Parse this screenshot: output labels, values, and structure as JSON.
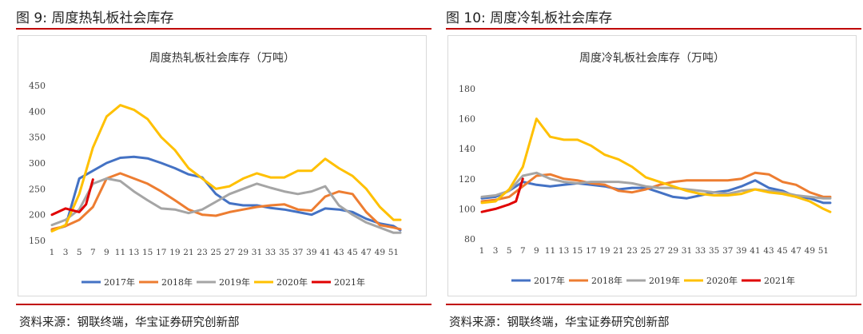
{
  "charts": {
    "left": {
      "figure_label": "图 9:  周度热轧板社会库存",
      "source": "资料来源：钢联终端，华宝证券研究创新部"
    },
    "right": {
      "figure_label": "图 10:  周度冷轧板社会库存",
      "source": "资料来源：钢联终端，华宝证券研究创新部"
    }
  },
  "chart_data": [
    {
      "type": "line",
      "title": "周度热轧板社会库存（万吨）",
      "xlabel": "",
      "ylabel": "",
      "ylim": [
        150,
        450
      ],
      "yticks": [
        150,
        200,
        250,
        300,
        350,
        400,
        450
      ],
      "xtick_labels": [
        "1",
        "3",
        "5",
        "7",
        "9",
        "11",
        "13",
        "15",
        "17",
        "19",
        "21",
        "23",
        "25",
        "27",
        "29",
        "31",
        "33",
        "35",
        "37",
        "39",
        "41",
        "43",
        "45",
        "47",
        "49",
        "51"
      ],
      "grid": false,
      "legend_position": "bottom",
      "series": [
        {
          "name": "2017年",
          "color": "#4472c4",
          "x": [
            1,
            3,
            5,
            7,
            9,
            11,
            13,
            15,
            17,
            19,
            21,
            23,
            25,
            27,
            29,
            31,
            33,
            35,
            37,
            39,
            41,
            43,
            45,
            47,
            49,
            51,
            52
          ],
          "y": [
            170,
            178,
            270,
            285,
            300,
            310,
            312,
            309,
            300,
            290,
            278,
            272,
            240,
            222,
            218,
            218,
            213,
            210,
            205,
            200,
            212,
            210,
            205,
            192,
            183,
            178,
            170
          ]
        },
        {
          "name": "2018年",
          "color": "#ed7d31",
          "x": [
            1,
            3,
            5,
            7,
            9,
            11,
            13,
            15,
            17,
            19,
            21,
            23,
            25,
            27,
            29,
            31,
            33,
            35,
            37,
            39,
            41,
            43,
            45,
            47,
            49,
            51,
            52
          ],
          "y": [
            172,
            178,
            190,
            215,
            270,
            280,
            270,
            260,
            245,
            228,
            210,
            200,
            198,
            205,
            210,
            215,
            218,
            220,
            210,
            208,
            235,
            245,
            240,
            205,
            180,
            175,
            172
          ]
        },
        {
          "name": "2019年",
          "color": "#a5a5a5",
          "x": [
            1,
            3,
            5,
            7,
            9,
            11,
            13,
            15,
            17,
            19,
            21,
            23,
            25,
            27,
            29,
            31,
            33,
            35,
            37,
            39,
            41,
            43,
            45,
            47,
            49,
            51,
            52
          ],
          "y": [
            180,
            190,
            210,
            260,
            270,
            265,
            245,
            228,
            212,
            210,
            203,
            210,
            225,
            240,
            250,
            260,
            252,
            245,
            240,
            245,
            255,
            218,
            200,
            185,
            175,
            165,
            165
          ]
        },
        {
          "name": "2020年",
          "color": "#ffc000",
          "x": [
            1,
            3,
            5,
            7,
            9,
            11,
            13,
            15,
            17,
            19,
            21,
            23,
            25,
            27,
            29,
            31,
            33,
            35,
            37,
            39,
            41,
            43,
            45,
            47,
            49,
            51,
            52
          ],
          "y": [
            168,
            180,
            240,
            330,
            390,
            412,
            403,
            385,
            350,
            325,
            290,
            270,
            250,
            255,
            270,
            280,
            272,
            272,
            285,
            285,
            308,
            290,
            275,
            250,
            215,
            190,
            190
          ]
        },
        {
          "name": "2021年",
          "color": "#e00000",
          "x": [
            1,
            3,
            5,
            6,
            7
          ],
          "y": [
            200,
            212,
            205,
            220,
            268
          ]
        }
      ]
    },
    {
      "type": "line",
      "title": "周度冷轧板社会库存（万吨）",
      "xlabel": "",
      "ylabel": "",
      "ylim": [
        80,
        180
      ],
      "yticks": [
        80,
        100,
        120,
        140,
        160,
        180
      ],
      "xtick_labels": [
        "1",
        "3",
        "5",
        "7",
        "9",
        "11",
        "13",
        "15",
        "17",
        "19",
        "21",
        "23",
        "25",
        "27",
        "29",
        "31",
        "33",
        "35",
        "37",
        "39",
        "41",
        "43",
        "45",
        "47",
        "49",
        "51"
      ],
      "grid": false,
      "legend_position": "bottom",
      "series": [
        {
          "name": "2017年",
          "color": "#4472c4",
          "x": [
            1,
            3,
            5,
            7,
            9,
            11,
            13,
            15,
            17,
            19,
            21,
            23,
            25,
            27,
            29,
            31,
            33,
            35,
            37,
            39,
            41,
            43,
            45,
            47,
            49,
            51,
            52
          ],
          "y": [
            107,
            108,
            112,
            118,
            116,
            115,
            116,
            117,
            116,
            115,
            113,
            114,
            114,
            111,
            108,
            107,
            109,
            111,
            112,
            115,
            119,
            114,
            112,
            108,
            107,
            104,
            104
          ]
        },
        {
          "name": "2018年",
          "color": "#ed7d31",
          "x": [
            1,
            3,
            5,
            7,
            9,
            11,
            13,
            15,
            17,
            19,
            21,
            23,
            25,
            27,
            29,
            31,
            33,
            35,
            37,
            39,
            41,
            43,
            45,
            47,
            49,
            51,
            52
          ],
          "y": [
            105,
            106,
            108,
            115,
            122,
            123,
            120,
            119,
            117,
            116,
            112,
            111,
            113,
            116,
            118,
            119,
            119,
            119,
            119,
            120,
            124,
            123,
            118,
            116,
            111,
            108,
            108
          ]
        },
        {
          "name": "2019年",
          "color": "#a5a5a5",
          "x": [
            1,
            3,
            5,
            7,
            9,
            11,
            13,
            15,
            17,
            19,
            21,
            23,
            25,
            27,
            29,
            31,
            33,
            35,
            37,
            39,
            41,
            43,
            45,
            47,
            49,
            51,
            52
          ],
          "y": [
            108,
            109,
            112,
            122,
            124,
            120,
            118,
            117,
            118,
            118,
            118,
            117,
            115,
            114,
            114,
            113,
            112,
            111,
            110,
            112,
            113,
            112,
            111,
            109,
            108,
            107,
            107
          ]
        },
        {
          "name": "2020年",
          "color": "#ffc000",
          "x": [
            1,
            3,
            5,
            7,
            9,
            11,
            13,
            15,
            17,
            19,
            21,
            23,
            25,
            27,
            29,
            31,
            33,
            35,
            37,
            39,
            41,
            43,
            45,
            47,
            49,
            51,
            52
          ],
          "y": [
            104,
            105,
            113,
            128,
            160,
            148,
            146,
            146,
            142,
            136,
            133,
            128,
            121,
            118,
            115,
            112,
            110,
            109,
            109,
            110,
            113,
            111,
            110,
            108,
            105,
            100,
            98
          ]
        },
        {
          "name": "2021年",
          "color": "#e00000",
          "x": [
            1,
            3,
            5,
            6,
            7
          ],
          "y": [
            98,
            100,
            103,
            105,
            120
          ]
        }
      ]
    }
  ]
}
